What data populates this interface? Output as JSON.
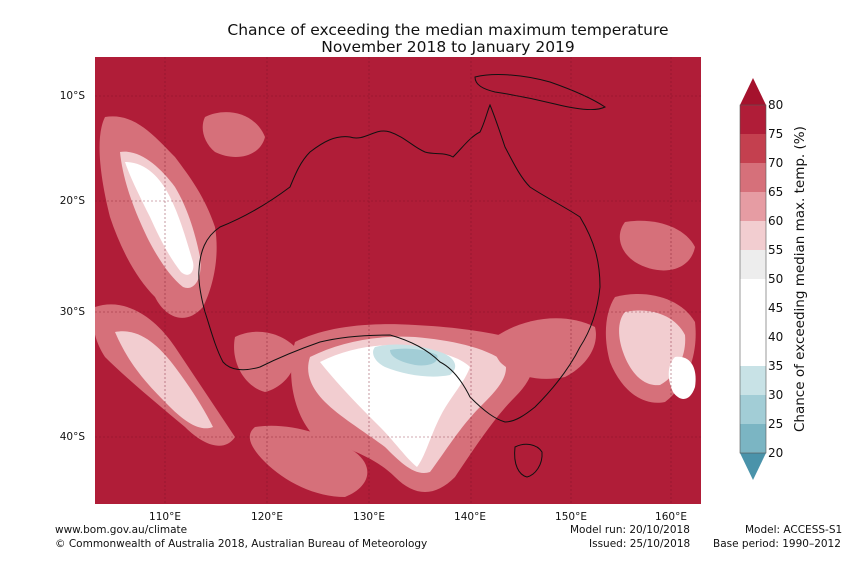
{
  "title": {
    "line1": "Chance of exceeding the median maximum temperature",
    "line2": "November 2018 to January 2019"
  },
  "map": {
    "lat_labels": [
      "10°S",
      "20°S",
      "30°S",
      "40°S"
    ],
    "lon_labels": [
      "110°E",
      "120°E",
      "130°E",
      "140°E",
      "150°E",
      "160°E"
    ],
    "background_color": "#b01d38"
  },
  "colorbar": {
    "label": "Chance of exceeding median max. temp. (%)",
    "ticks": [
      "80",
      "75",
      "70",
      "65",
      "60",
      "55",
      "50",
      "45",
      "40",
      "35",
      "30",
      "25",
      "20"
    ],
    "colors": [
      "#b01d38",
      "#c4404f",
      "#d6707a",
      "#e69ca3",
      "#f2cdd0",
      "#ededed",
      "#ffffff",
      "#ffffff",
      "#ffffff",
      "#c8e2e6",
      "#a2cdd6",
      "#7bb5c3",
      "#56a1b4"
    ]
  },
  "footer": {
    "url": "www.bom.gov.au/climate",
    "copyright": "© Commonwealth of Australia 2018, Australian Bureau of Meteorology",
    "model_run": "Model run: 20/10/2018",
    "issued": "Issued: 25/10/2018",
    "model": "Model: ACCESS-S1",
    "base_period": "Base period: 1990–2012"
  }
}
